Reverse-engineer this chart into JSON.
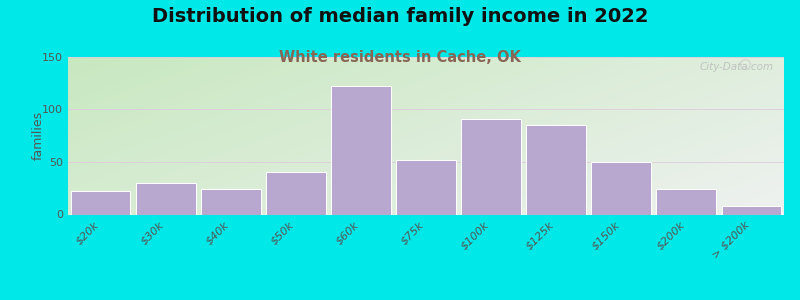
{
  "title": "Distribution of median family income in 2022",
  "subtitle": "White residents in Cache, OK",
  "ylabel": "families",
  "categories": [
    "$20k",
    "$30k",
    "$40k",
    "$50k",
    "$60k",
    "$75k",
    "$100k",
    "$125k",
    "$150k",
    "$200k",
    "> $200k"
  ],
  "values": [
    22,
    30,
    24,
    40,
    122,
    52,
    91,
    85,
    50,
    24,
    8
  ],
  "bar_color": "#b8a8d0",
  "bar_edgecolor": "#ffffff",
  "ylim": [
    0,
    150
  ],
  "yticks": [
    0,
    50,
    100,
    150
  ],
  "background_outer": "#00e8e8",
  "title_fontsize": 14,
  "subtitle_fontsize": 10.5,
  "subtitle_color": "#886655",
  "watermark": "City-Data.com",
  "tick_fontsize": 8,
  "grid_color": "#ddccdd",
  "grad_top_left": "#c8e8c0",
  "grad_bottom_right": "#f4f0f8"
}
